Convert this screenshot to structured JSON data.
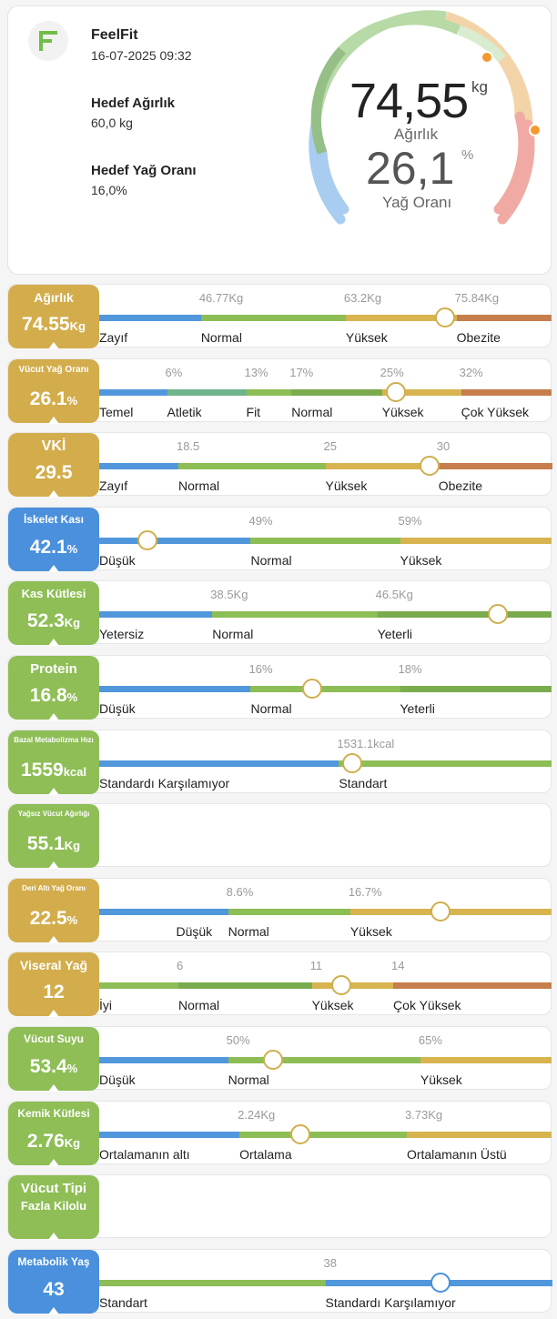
{
  "colors": {
    "blue": "#5197dc",
    "green": "#8dbd55",
    "yellow": "#d7b44f",
    "orange": "#c67e4c",
    "teal": "#70b48b",
    "darkgreen": "#7aab4e",
    "badge_yellow": "#d3ad4c",
    "badge_green": "#8ebe55",
    "badge_blue": "#4a90dc"
  },
  "header": {
    "brand": "FeelFit",
    "datetime": "16-07-2025 09:32",
    "target_weight_label": "Hedef Ağırlık",
    "target_weight_value": "60,0 kg",
    "target_fat_label": "Hedef Yağ Oranı",
    "target_fat_value": "16,0%"
  },
  "gauge": {
    "weight": "74,55",
    "weight_unit": "kg",
    "weight_label": "Ağırlık",
    "fat": "26,1",
    "fat_unit": "%",
    "fat_label": "Yağ Oranı"
  },
  "metrics": [
    {
      "label": "Ağırlık",
      "value": "74.55",
      "unit": "Kg",
      "color": "#d3ad4c",
      "label_size": 14,
      "segments": [
        {
          "w": 0.225,
          "c": "#5197dc"
        },
        {
          "w": 0.32,
          "c": "#8dbd55"
        },
        {
          "w": 0.245,
          "c": "#d7b44f"
        },
        {
          "w": 0.21,
          "c": "#c67e4c"
        }
      ],
      "ticks": [
        {
          "t": "46.77Kg",
          "p": 0.225
        },
        {
          "t": "63.2Kg",
          "p": 0.545
        },
        {
          "t": "75.84Kg",
          "p": 0.79
        }
      ],
      "cats": [
        {
          "t": "Zayıf",
          "p": 0
        },
        {
          "t": "Normal",
          "p": 0.225
        },
        {
          "t": "Yüksek",
          "p": 0.545
        },
        {
          "t": "Obezite",
          "p": 0.79
        }
      ],
      "marker": 0.765
    },
    {
      "label": "Vücut Yağ Oranı",
      "value": "26.1",
      "unit": "%",
      "color": "#d3ad4c",
      "label_size": 10,
      "segments": [
        {
          "w": 0.15,
          "c": "#5197dc"
        },
        {
          "w": 0.175,
          "c": "#70b48b"
        },
        {
          "w": 0.1,
          "c": "#8dbd55"
        },
        {
          "w": 0.2,
          "c": "#7aab4e"
        },
        {
          "w": 0.175,
          "c": "#d7b44f"
        },
        {
          "w": 0.2,
          "c": "#c67e4c"
        }
      ],
      "ticks": [
        {
          "t": "6%",
          "p": 0.15
        },
        {
          "t": "13%",
          "p": 0.325
        },
        {
          "t": "17%",
          "p": 0.425
        },
        {
          "t": "25%",
          "p": 0.625
        },
        {
          "t": "32%",
          "p": 0.8
        }
      ],
      "cats": [
        {
          "t": "Temel",
          "p": 0
        },
        {
          "t": "Atletik",
          "p": 0.15
        },
        {
          "t": "Fit",
          "p": 0.325
        },
        {
          "t": "Normal",
          "p": 0.425
        },
        {
          "t": "Yüksek",
          "p": 0.625
        },
        {
          "t": "Çok Yüksek",
          "p": 0.8
        }
      ],
      "marker": 0.655
    },
    {
      "label": "VKİ",
      "value": "29.5",
      "unit": "",
      "color": "#d3ad4c",
      "label_size": 16,
      "segments": [
        {
          "w": 0.175,
          "c": "#5197dc"
        },
        {
          "w": 0.325,
          "c": "#8dbd55"
        },
        {
          "w": 0.25,
          "c": "#d7b44f"
        },
        {
          "w": 0.25,
          "c": "#c67e4c"
        }
      ],
      "ticks": [
        {
          "t": "18.5",
          "p": 0.175
        },
        {
          "t": "25",
          "p": 0.5
        },
        {
          "t": "30",
          "p": 0.75
        }
      ],
      "cats": [
        {
          "t": "Zayıf",
          "p": 0
        },
        {
          "t": "Normal",
          "p": 0.175
        },
        {
          "t": "Yüksek",
          "p": 0.5
        },
        {
          "t": "Obezite",
          "p": 0.75
        }
      ],
      "marker": 0.73
    },
    {
      "label": "İskelet Kası",
      "value": "42.1",
      "unit": "%",
      "color": "#4a90dc",
      "label_size": 12,
      "segments": [
        {
          "w": 0.335,
          "c": "#5197dc"
        },
        {
          "w": 0.33,
          "c": "#8dbd55"
        },
        {
          "w": 0.335,
          "c": "#d7b44f"
        }
      ],
      "ticks": [
        {
          "t": "49%",
          "p": 0.335
        },
        {
          "t": "59%",
          "p": 0.665
        }
      ],
      "cats": [
        {
          "t": "Düşük",
          "p": 0
        },
        {
          "t": "Normal",
          "p": 0.335
        },
        {
          "t": "Yüksek",
          "p": 0.665
        }
      ],
      "marker": 0.107
    },
    {
      "label": "Kas Kütlesi",
      "value": "52.3",
      "unit": "Kg",
      "color": "#8ebe55",
      "label_size": 13,
      "segments": [
        {
          "w": 0.25,
          "c": "#5197dc"
        },
        {
          "w": 0.365,
          "c": "#8dbd55"
        },
        {
          "w": 0.385,
          "c": "#7aab4e"
        }
      ],
      "ticks": [
        {
          "t": "38.5Kg",
          "p": 0.25
        },
        {
          "t": "46.5Kg",
          "p": 0.615
        }
      ],
      "cats": [
        {
          "t": "Yetersiz",
          "p": 0
        },
        {
          "t": "Normal",
          "p": 0.25
        },
        {
          "t": "Yeterli",
          "p": 0.615
        }
      ],
      "marker": 0.882
    },
    {
      "label": "Protein",
      "value": "16.8",
      "unit": "%",
      "color": "#8ebe55",
      "label_size": 15,
      "segments": [
        {
          "w": 0.335,
          "c": "#5197dc"
        },
        {
          "w": 0.33,
          "c": "#8dbd55"
        },
        {
          "w": 0.335,
          "c": "#7aab4e"
        }
      ],
      "ticks": [
        {
          "t": "16%",
          "p": 0.335
        },
        {
          "t": "18%",
          "p": 0.665
        }
      ],
      "cats": [
        {
          "t": "Düşük",
          "p": 0
        },
        {
          "t": "Normal",
          "p": 0.335
        },
        {
          "t": "Yeterli",
          "p": 0.665
        }
      ],
      "marker": 0.47
    },
    {
      "label": "Bazal Metabolizma Hızı",
      "value": "1559",
      "unit": "kcal",
      "color": "#8ebe55",
      "label_size": 8,
      "segments": [
        {
          "w": 0.53,
          "c": "#5197dc"
        },
        {
          "w": 0.47,
          "c": "#8dbd55"
        }
      ],
      "ticks": [
        {
          "t": "1531.1kcal",
          "p": 0.53
        }
      ],
      "cats": [
        {
          "t": "Standardı Karşılamıyor",
          "p": 0
        },
        {
          "t": "Standart",
          "p": 0.53
        }
      ],
      "marker": 0.56
    },
    {
      "label": "Yağsız Vücut Ağırlığı",
      "value": "55.1",
      "unit": "Kg",
      "color": "#8ebe55",
      "label_size": 8,
      "segments": [],
      "ticks": [],
      "cats": [],
      "marker": null
    },
    {
      "label": "Deri Altı Yağ Oranı",
      "value": "22.5",
      "unit": "%",
      "color": "#d3ad4c",
      "label_size": 8,
      "segments": [
        {
          "w": 0.285,
          "c": "#5197dc"
        },
        {
          "w": 0.27,
          "c": "#8dbd55"
        },
        {
          "w": 0.445,
          "c": "#d7b44f"
        }
      ],
      "ticks": [
        {
          "t": "8.6%",
          "p": 0.285
        },
        {
          "t": "16.7%",
          "p": 0.555
        }
      ],
      "cats": [
        {
          "t": "Düşük",
          "p": 0.17
        },
        {
          "t": "Normal",
          "p": 0.285
        },
        {
          "t": "Yüksek",
          "p": 0.555
        }
      ],
      "marker": 0.755
    },
    {
      "label": "Viseral Yağ",
      "value": "12",
      "unit": "",
      "color": "#d3ad4c",
      "label_size": 14,
      "segments": [
        {
          "w": 0.175,
          "c": "#8dbd55"
        },
        {
          "w": 0.295,
          "c": "#7aab4e"
        },
        {
          "w": 0.18,
          "c": "#d7b44f"
        },
        {
          "w": 0.35,
          "c": "#c67e4c"
        }
      ],
      "ticks": [
        {
          "t": "6",
          "p": 0.175
        },
        {
          "t": "11",
          "p": 0.47
        },
        {
          "t": "14",
          "p": 0.65
        }
      ],
      "cats": [
        {
          "t": "İyi",
          "p": 0
        },
        {
          "t": "Normal",
          "p": 0.175
        },
        {
          "t": "Yüksek",
          "p": 0.47
        },
        {
          "t": "Çok Yüksek",
          "p": 0.65
        }
      ],
      "marker": 0.535
    },
    {
      "label": "Vücut Suyu",
      "value": "53.4",
      "unit": "%",
      "color": "#8ebe55",
      "label_size": 12,
      "segments": [
        {
          "w": 0.285,
          "c": "#5197dc"
        },
        {
          "w": 0.425,
          "c": "#8dbd55"
        },
        {
          "w": 0.29,
          "c": "#d7b44f"
        }
      ],
      "ticks": [
        {
          "t": "50%",
          "p": 0.285
        },
        {
          "t": "65%",
          "p": 0.71
        }
      ],
      "cats": [
        {
          "t": "Düşük",
          "p": 0
        },
        {
          "t": "Normal",
          "p": 0.285
        },
        {
          "t": "Yüksek",
          "p": 0.71
        }
      ],
      "marker": 0.385
    },
    {
      "label": "Kemik Kütlesi",
      "value": "2.76",
      "unit": "Kg",
      "color": "#8ebe55",
      "label_size": 12,
      "segments": [
        {
          "w": 0.31,
          "c": "#5197dc"
        },
        {
          "w": 0.37,
          "c": "#8dbd55"
        },
        {
          "w": 0.32,
          "c": "#d7b44f"
        }
      ],
      "ticks": [
        {
          "t": "2.24Kg",
          "p": 0.31
        },
        {
          "t": "3.73Kg",
          "p": 0.68
        }
      ],
      "cats": [
        {
          "t": "Ortalamanın altı",
          "p": 0
        },
        {
          "t": "Ortalama",
          "p": 0.31
        },
        {
          "t": "Ortalamanın Üstü",
          "p": 0.68
        }
      ],
      "marker": 0.445
    },
    {
      "label": "Vücut Tipi",
      "value": "Fazla Kilolu",
      "unit": "",
      "color": "#8ebe55",
      "label_size": 15,
      "value_size": 13,
      "segments": [],
      "ticks": [],
      "cats": [],
      "marker": null
    },
    {
      "label": "Metabolik Yaş",
      "value": "43",
      "unit": "",
      "color": "#4a90dc",
      "label_size": 12,
      "segments": [
        {
          "w": 0.5,
          "c": "#8dbd55"
        },
        {
          "w": 0.5,
          "c": "#5197dc"
        }
      ],
      "ticks": [
        {
          "t": "38",
          "p": 0.5
        }
      ],
      "cats": [
        {
          "t": "Standart",
          "p": 0
        },
        {
          "t": "Standardı Karşılamıyor",
          "p": 0.5
        }
      ],
      "marker": 0.755,
      "marker_color": "#4a90dc"
    }
  ]
}
